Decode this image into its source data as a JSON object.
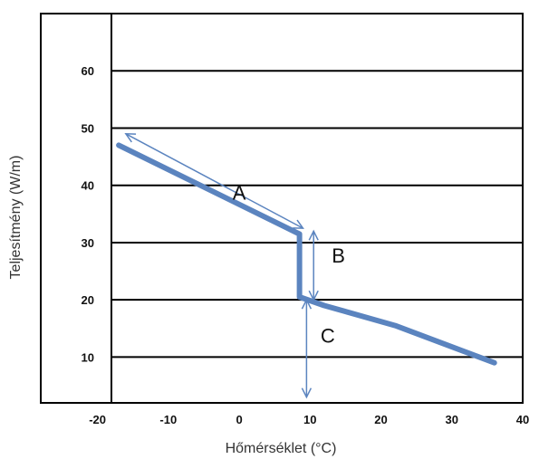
{
  "chart_data": {
    "type": "line",
    "title": "",
    "xlabel": "Hőmérséklet (°C)",
    "ylabel": "Teljesítmény (W/m)",
    "xlim": [
      -28,
      40
    ],
    "ylim": [
      2,
      70
    ],
    "x_ticks": [
      "-20",
      "-10",
      "0",
      "10",
      "20",
      "30",
      "40"
    ],
    "y_ticks": [
      "10",
      "20",
      "30",
      "40",
      "50",
      "60"
    ],
    "grid": "horizontal",
    "legend": "none",
    "series": [
      {
        "color": "#5b84bf",
        "points": [
          [
            -17,
            47
          ],
          [
            8.5,
            31.5
          ],
          [
            8.5,
            20.5
          ],
          [
            12,
            19
          ],
          [
            22,
            15.5
          ],
          [
            36,
            9
          ]
        ]
      }
    ],
    "annotations": [
      {
        "label": "A",
        "type": "double-arrow",
        "from": [
          -16,
          49
        ],
        "to": [
          9,
          32.5
        ],
        "label_pos": [
          0,
          37.5
        ]
      },
      {
        "label": "B",
        "type": "double-arrow",
        "from": [
          10.5,
          32
        ],
        "to": [
          10.5,
          20
        ],
        "label_pos": [
          14,
          26.5
        ]
      },
      {
        "label": "C",
        "type": "double-arrow",
        "from": [
          9.5,
          20
        ],
        "to": [
          9.5,
          3
        ],
        "label_pos": [
          12.5,
          12.5
        ]
      }
    ],
    "annotation_color": "#5b84bf"
  }
}
